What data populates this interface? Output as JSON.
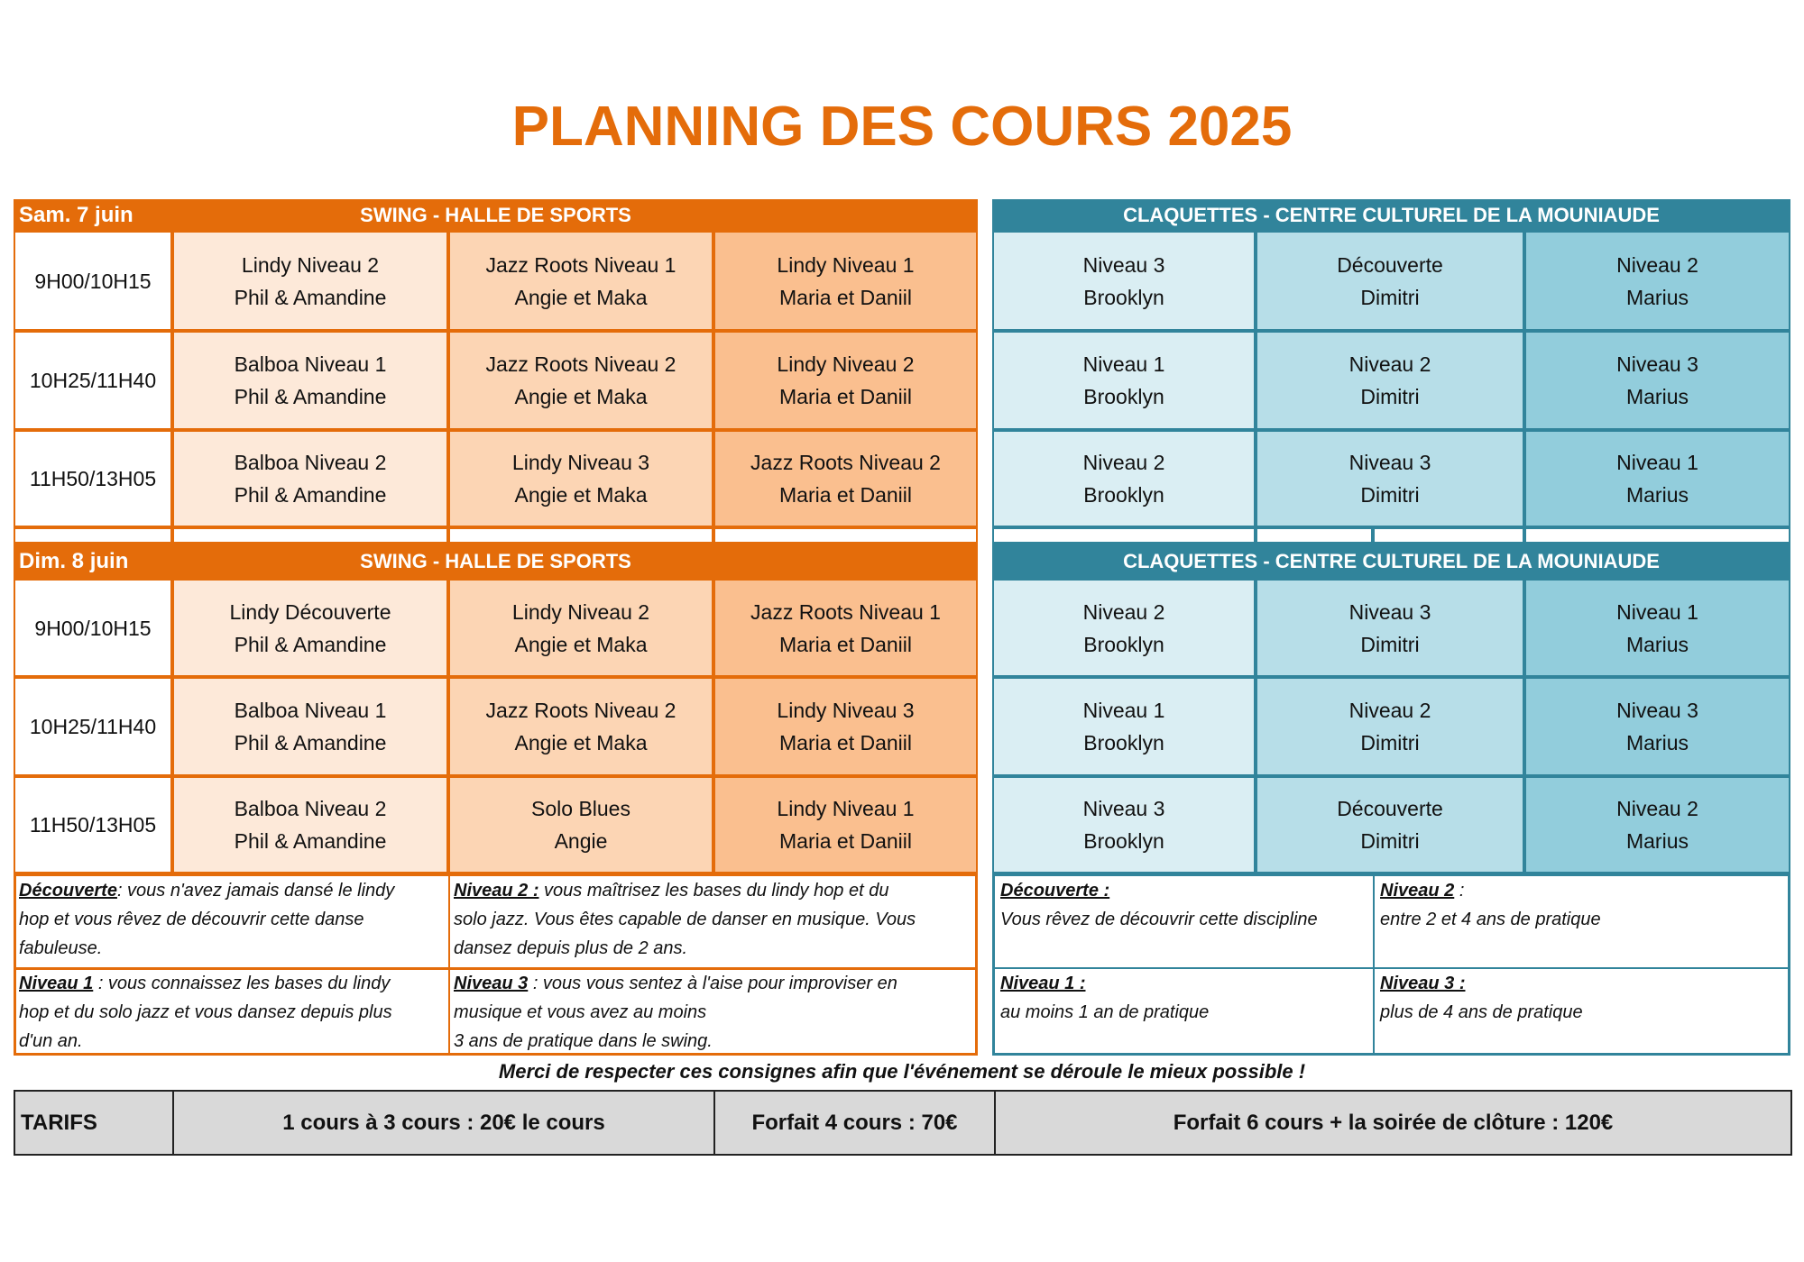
{
  "title": "PLANNING DES COURS 2025",
  "colors": {
    "orange": "#E46C0A",
    "teal": "#31849B",
    "swing_cells": [
      "#FDE9D9",
      "#FCD5B4",
      "#FABF8F"
    ],
    "tap_cells": [
      "#DAEEF3",
      "#B7DEE8",
      "#92CDDC"
    ]
  },
  "days": [
    {
      "day": "Sam. 7 juin",
      "swing_header": "SWING - HALLE DE SPORTS",
      "tap_header": "CLAQUETTES - CENTRE CULTUREL DE LA MOUNIAUDE",
      "rows": [
        {
          "time": "9H00/10H15",
          "swing": [
            [
              "Lindy Niveau 2",
              "Phil & Amandine"
            ],
            [
              "Jazz Roots Niveau 1",
              "Angie et Maka"
            ],
            [
              "Lindy Niveau 1",
              "Maria et Daniil"
            ]
          ],
          "tap": [
            [
              "Niveau 3",
              "Brooklyn"
            ],
            [
              "Découverte",
              "Dimitri"
            ],
            [
              "Niveau 2",
              "Marius"
            ]
          ]
        },
        {
          "time": "10H25/11H40",
          "swing": [
            [
              "Balboa Niveau 1",
              "Phil & Amandine"
            ],
            [
              "Jazz Roots Niveau 2",
              "Angie et Maka"
            ],
            [
              "Lindy Niveau 2",
              "Maria et Daniil"
            ]
          ],
          "tap": [
            [
              "Niveau 1",
              "Brooklyn"
            ],
            [
              "Niveau 2",
              "Dimitri"
            ],
            [
              "Niveau 3",
              "Marius"
            ]
          ]
        },
        {
          "time": "11H50/13H05",
          "swing": [
            [
              "Balboa Niveau 2",
              "Phil & Amandine"
            ],
            [
              "Lindy Niveau 3",
              "Angie et Maka"
            ],
            [
              "Jazz Roots Niveau 2",
              "Maria et Daniil"
            ]
          ],
          "tap": [
            [
              "Niveau 2",
              "Brooklyn"
            ],
            [
              "Niveau 3",
              "Dimitri"
            ],
            [
              "Niveau 1",
              "Marius"
            ]
          ]
        }
      ]
    },
    {
      "day": "Dim. 8 juin",
      "swing_header": "SWING - HALLE DE SPORTS",
      "tap_header": "CLAQUETTES - CENTRE CULTUREL DE LA MOUNIAUDE",
      "rows": [
        {
          "time": "9H00/10H15",
          "swing": [
            [
              "Lindy Découverte",
              "Phil & Amandine"
            ],
            [
              "Lindy Niveau 2",
              "Angie et Maka"
            ],
            [
              "Jazz Roots Niveau 1",
              "Maria et Daniil"
            ]
          ],
          "tap": [
            [
              "Niveau 2",
              "Brooklyn"
            ],
            [
              "Niveau 3",
              "Dimitri"
            ],
            [
              "Niveau 1",
              "Marius"
            ]
          ]
        },
        {
          "time": "10H25/11H40",
          "swing": [
            [
              "Balboa Niveau 1",
              "Phil & Amandine"
            ],
            [
              "Jazz Roots Niveau 2",
              "Angie et Maka"
            ],
            [
              "Lindy Niveau 3",
              "Maria et Daniil"
            ]
          ],
          "tap": [
            [
              "Niveau 1",
              "Brooklyn"
            ],
            [
              "Niveau 2",
              "Dimitri"
            ],
            [
              "Niveau 3",
              "Marius"
            ]
          ]
        },
        {
          "time": "11H50/13H05",
          "swing": [
            [
              "Balboa Niveau 2",
              "Phil & Amandine"
            ],
            [
              "Solo Blues",
              "Angie"
            ],
            [
              "Lindy Niveau 1",
              "Maria et Daniil"
            ]
          ],
          "tap": [
            [
              "Niveau 3",
              "Brooklyn"
            ],
            [
              "Découverte",
              "Dimitri"
            ],
            [
              "Niveau 2",
              "Marius"
            ]
          ]
        }
      ]
    }
  ],
  "swing_notes": [
    {
      "label": "Découverte",
      "text": ": vous n'avez jamais dansé le lindy\nhop et vous rêvez de découvrir cette danse\nfabuleuse."
    },
    {
      "label": "Niveau 2 :",
      "text": " vous maîtrisez les bases du lindy hop et du\nsolo jazz. Vous êtes capable de danser en musique. Vous\ndansez depuis plus de 2 ans."
    },
    {
      "label": "Niveau 1",
      "text": " : vous connaissez les bases du lindy\nhop et du solo jazz et vous dansez depuis plus\nd'un an."
    },
    {
      "label": "Niveau 3",
      "text": " : vous vous sentez à l'aise pour improviser en\nmusique et vous avez au moins\n3 ans de pratique dans le swing."
    }
  ],
  "tap_notes": [
    {
      "label": "Découverte :",
      "text": "\nVous rêvez de découvrir cette discipline"
    },
    {
      "label": "Niveau 2",
      "text": " :\nentre 2 et 4 ans de pratique"
    },
    {
      "label": "Niveau 1 :",
      "text": "\nau moins 1 an de pratique"
    },
    {
      "label": "Niveau 3 :",
      "text": "\nplus de 4 ans de pratique"
    }
  ],
  "merci": "Merci de respecter ces consignes afin que l'événement se déroule le mieux possible !",
  "tarifs": {
    "label": "TARIFS",
    "items": [
      "1 cours à 3 cours : 20€ le cours",
      "Forfait 4 cours : 70€",
      "Forfait 6 cours + la soirée de clôture : 120€"
    ]
  }
}
